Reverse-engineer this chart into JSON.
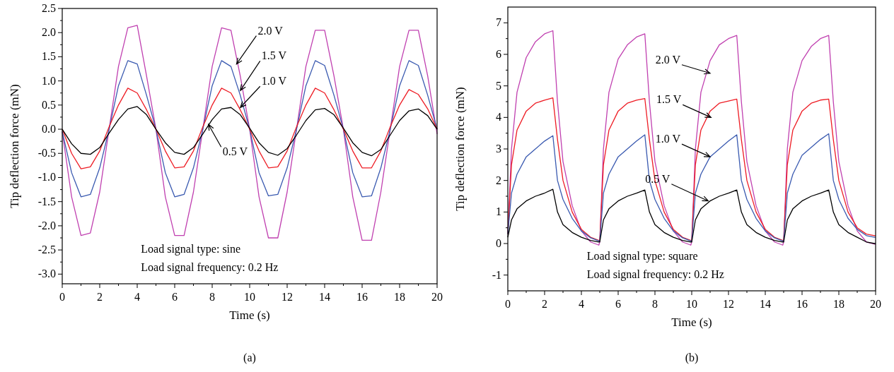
{
  "chart_data": [
    {
      "type": "line",
      "title": "(a)",
      "xlabel": "Time (s)",
      "ylabel": "Tip deflection force (mN)",
      "xlim": [
        0,
        20
      ],
      "xticks": [
        0,
        2,
        4,
        6,
        8,
        10,
        12,
        14,
        16,
        18,
        20
      ],
      "ylim": [
        -3.2,
        2.5
      ],
      "yticks": [
        {
          "value": -3,
          "label": "-3.0"
        },
        -2.5,
        {
          "value": -2,
          "label": "-2.0"
        },
        -1.5,
        {
          "value": -1,
          "label": "-1.0"
        },
        -0.5,
        {
          "value": 0,
          "label": "0.0"
        },
        0.5,
        {
          "value": 1,
          "label": "1.0"
        },
        1.5,
        {
          "value": 2,
          "label": "2.0"
        },
        2.5
      ],
      "grid": false,
      "marker": "none",
      "line_style": "solid",
      "x": [
        0,
        0.5,
        1,
        1.5,
        2,
        2.5,
        3,
        3.5,
        4,
        4.5,
        5,
        5.5,
        6,
        6.5,
        7,
        7.5,
        8,
        8.5,
        9,
        9.5,
        10,
        10.5,
        11,
        11.5,
        12,
        12.5,
        13,
        13.5,
        14,
        14.5,
        15,
        15.5,
        16,
        16.5,
        17,
        17.5,
        18,
        18.5,
        19,
        19.5,
        20
      ],
      "series": [
        {
          "color": "#c040b0",
          "values": [
            -0.05,
            -1.4,
            -2.2,
            -2.15,
            -1.3,
            0.0,
            1.3,
            2.1,
            2.15,
            1.1,
            0.0,
            -1.4,
            -2.2,
            -2.2,
            -1.3,
            0.0,
            1.3,
            2.1,
            2.05,
            1.1,
            0.0,
            -1.4,
            -2.25,
            -2.25,
            -1.3,
            0.0,
            1.3,
            2.05,
            2.05,
            1.1,
            0.0,
            -1.4,
            -2.3,
            -2.3,
            -1.3,
            0.0,
            1.3,
            2.05,
            2.05,
            1.1,
            -0.1
          ]
        },
        {
          "color": "#3a5ab0",
          "values": [
            -0.05,
            -0.9,
            -1.4,
            -1.35,
            -0.8,
            0.0,
            0.9,
            1.42,
            1.35,
            0.7,
            0.0,
            -0.9,
            -1.4,
            -1.35,
            -0.8,
            0.0,
            0.9,
            1.42,
            1.3,
            0.7,
            0.0,
            -0.9,
            -1.38,
            -1.35,
            -0.8,
            0.0,
            0.9,
            1.42,
            1.32,
            0.7,
            0.0,
            -0.9,
            -1.4,
            -1.38,
            -0.8,
            0.0,
            0.9,
            1.42,
            1.32,
            0.7,
            0.0
          ]
        },
        {
          "color": "#ee1c24",
          "values": [
            0.0,
            -0.5,
            -0.82,
            -0.78,
            -0.45,
            0.05,
            0.5,
            0.85,
            0.75,
            0.4,
            0.0,
            -0.45,
            -0.8,
            -0.78,
            -0.45,
            0.05,
            0.5,
            0.85,
            0.75,
            0.4,
            0.0,
            -0.45,
            -0.8,
            -0.78,
            -0.45,
            0.05,
            0.5,
            0.85,
            0.75,
            0.4,
            0.0,
            -0.45,
            -0.8,
            -0.8,
            -0.45,
            0.05,
            0.5,
            0.82,
            0.72,
            0.42,
            0.0
          ]
        },
        {
          "color": "#000000",
          "values": [
            0.0,
            -0.3,
            -0.5,
            -0.52,
            -0.38,
            -0.08,
            0.2,
            0.42,
            0.47,
            0.3,
            0.0,
            -0.28,
            -0.48,
            -0.52,
            -0.38,
            -0.1,
            0.2,
            0.42,
            0.45,
            0.3,
            0.02,
            -0.28,
            -0.48,
            -0.54,
            -0.4,
            -0.12,
            0.18,
            0.4,
            0.43,
            0.3,
            0.02,
            -0.28,
            -0.48,
            -0.55,
            -0.42,
            -0.12,
            0.18,
            0.38,
            0.42,
            0.28,
            0.0
          ]
        }
      ],
      "annotations": [
        {
          "text": "2.0 V",
          "x": 9.3,
          "y": 1.35
        },
        {
          "text": "1.5 V",
          "x": 9.5,
          "y": 0.8
        },
        {
          "text": "1.0 V",
          "x": 9.5,
          "y": 0.45
        },
        {
          "text": "0.5 V",
          "x": 7.8,
          "y": 0.1
        },
        "Load signal type: sine",
        "Load signal frequency: 0.2 Hz"
      ]
    },
    {
      "type": "line",
      "title": "(b)",
      "xlabel": "Time (s)",
      "ylabel": "Tip deflection force (mN)",
      "xlim": [
        0,
        20
      ],
      "xticks": [
        0,
        2,
        4,
        6,
        8,
        10,
        12,
        14,
        16,
        18,
        20
      ],
      "ylim": [
        -1.5,
        7.5
      ],
      "yticks": [
        -1,
        0,
        1,
        2,
        3,
        4,
        5,
        6,
        7
      ],
      "grid": false,
      "marker": "none",
      "line_style": "solid",
      "x": [
        0,
        0.2,
        0.5,
        1,
        1.5,
        2,
        2.45,
        2.7,
        3,
        3.5,
        4,
        4.5,
        4.95,
        5,
        5.2,
        5.5,
        6,
        6.5,
        7,
        7.45,
        7.7,
        8,
        8.5,
        9,
        9.5,
        9.95,
        10,
        10.2,
        10.5,
        11,
        11.5,
        12,
        12.45,
        12.7,
        13,
        13.5,
        14,
        14.5,
        14.95,
        15,
        15.2,
        15.5,
        16,
        16.5,
        17,
        17.45,
        17.7,
        18,
        18.5,
        19,
        19.5,
        19.95,
        20
      ],
      "series": [
        {
          "color": "#c040b0",
          "values": [
            0.3,
            3.0,
            4.8,
            5.9,
            6.4,
            6.65,
            6.75,
            4.5,
            2.6,
            1.2,
            0.4,
            0.05,
            -0.05,
            0.05,
            3.0,
            4.8,
            5.85,
            6.3,
            6.55,
            6.65,
            4.5,
            2.6,
            1.2,
            0.4,
            0.05,
            -0.05,
            0.05,
            3.0,
            4.8,
            5.8,
            6.3,
            6.5,
            6.6,
            4.5,
            2.6,
            1.2,
            0.4,
            0.05,
            -0.05,
            0.05,
            3.0,
            4.8,
            5.8,
            6.25,
            6.5,
            6.6,
            4.5,
            2.6,
            1.2,
            0.4,
            0.05,
            -0.02,
            -0.02
          ]
        },
        {
          "color": "#ee1c24",
          "values": [
            0.3,
            2.5,
            3.6,
            4.2,
            4.45,
            4.55,
            4.62,
            3.3,
            2.0,
            1.0,
            0.45,
            0.2,
            0.1,
            0.1,
            2.5,
            3.6,
            4.2,
            4.45,
            4.55,
            4.6,
            3.3,
            2.0,
            1.0,
            0.45,
            0.2,
            0.1,
            0.1,
            2.5,
            3.6,
            4.2,
            4.45,
            4.52,
            4.58,
            3.3,
            2.0,
            1.0,
            0.45,
            0.2,
            0.1,
            0.1,
            2.5,
            3.6,
            4.2,
            4.45,
            4.55,
            4.58,
            3.3,
            2.0,
            1.0,
            0.5,
            0.3,
            0.25,
            0.25
          ]
        },
        {
          "color": "#3a5ab0",
          "values": [
            0.3,
            1.6,
            2.2,
            2.75,
            3.0,
            3.25,
            3.42,
            2.0,
            1.4,
            0.8,
            0.4,
            0.18,
            0.08,
            0.08,
            1.6,
            2.2,
            2.75,
            3.0,
            3.25,
            3.45,
            2.0,
            1.4,
            0.8,
            0.4,
            0.18,
            0.08,
            0.08,
            1.6,
            2.2,
            2.75,
            3.0,
            3.25,
            3.45,
            2.0,
            1.4,
            0.8,
            0.4,
            0.18,
            0.08,
            0.08,
            1.6,
            2.2,
            2.8,
            3.05,
            3.3,
            3.48,
            2.0,
            1.4,
            0.8,
            0.45,
            0.25,
            0.2,
            0.2
          ]
        },
        {
          "color": "#000000",
          "values": [
            0.2,
            0.75,
            1.1,
            1.35,
            1.5,
            1.6,
            1.72,
            1.0,
            0.6,
            0.35,
            0.2,
            0.1,
            0.05,
            0.05,
            0.75,
            1.1,
            1.35,
            1.5,
            1.6,
            1.7,
            1.0,
            0.6,
            0.35,
            0.2,
            0.1,
            0.05,
            0.05,
            0.75,
            1.1,
            1.35,
            1.5,
            1.6,
            1.7,
            1.0,
            0.6,
            0.35,
            0.2,
            0.1,
            0.05,
            0.05,
            0.75,
            1.1,
            1.35,
            1.5,
            1.6,
            1.7,
            1.0,
            0.6,
            0.35,
            0.2,
            0.05,
            0.0,
            0.0
          ]
        }
      ],
      "annotations": [
        {
          "text": "2.0 V",
          "x": 11.0,
          "y": 5.4
        },
        {
          "text": "1.5 V",
          "x": 11.05,
          "y": 4.0
        },
        {
          "text": "1.0 V",
          "x": 11.0,
          "y": 2.75
        },
        {
          "text": "0.5 V",
          "x": 10.9,
          "y": 1.35
        },
        "Load signal type: square",
        "Load signal frequency: 0.2 Hz"
      ]
    }
  ]
}
